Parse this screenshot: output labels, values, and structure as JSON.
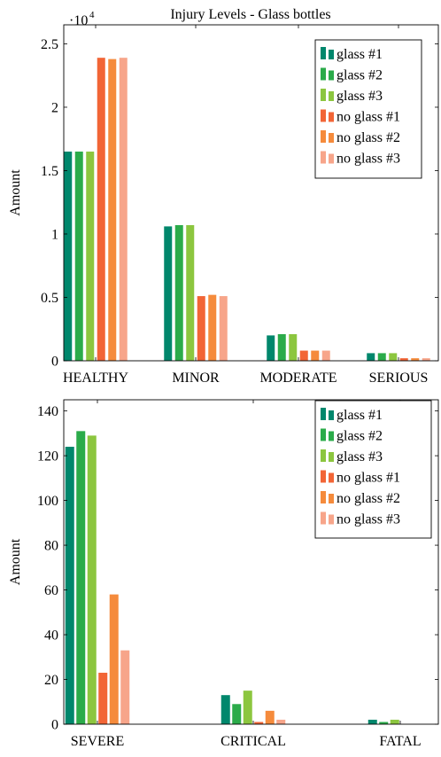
{
  "chart_data": [
    {
      "type": "bar",
      "title": "Injury Levels - Glass bottles",
      "ylabel": "Amount",
      "xlabel": "",
      "scale_label": "·10",
      "scale_exponent": "4",
      "categories": [
        "HEALTHY",
        "MINOR",
        "MODERATE",
        "SERIOUS"
      ],
      "ylim": [
        0,
        2.65
      ],
      "yticks": [
        0,
        0.5,
        1,
        1.5,
        2,
        2.5
      ],
      "ytick_labels": [
        "0",
        "0.5",
        "1",
        "1.5",
        "2",
        "2.5"
      ],
      "legend_position": "top-right",
      "grid": false,
      "series": [
        {
          "name": "glass #1",
          "color": "#00876c",
          "values": [
            1.65,
            1.06,
            0.2,
            0.06
          ]
        },
        {
          "name": "glass #2",
          "color": "#2bab4a",
          "values": [
            1.65,
            1.07,
            0.21,
            0.06
          ]
        },
        {
          "name": "glass #3",
          "color": "#8cc63f",
          "values": [
            1.65,
            1.07,
            0.21,
            0.06
          ]
        },
        {
          "name": "no glass #1",
          "color": "#f26536",
          "values": [
            2.39,
            0.51,
            0.08,
            0.02
          ]
        },
        {
          "name": "no glass #2",
          "color": "#f58b3c",
          "values": [
            2.38,
            0.52,
            0.08,
            0.02
          ]
        },
        {
          "name": "no glass #3",
          "color": "#f7a58a",
          "values": [
            2.39,
            0.51,
            0.08,
            0.02
          ]
        }
      ]
    },
    {
      "type": "bar",
      "title": "",
      "ylabel": "Amount",
      "xlabel": "",
      "categories": [
        "SEVERE",
        "CRITICAL",
        "FATAL"
      ],
      "ylim": [
        0,
        145
      ],
      "yticks": [
        0,
        20,
        40,
        60,
        80,
        100,
        120,
        140
      ],
      "ytick_labels": [
        "0",
        "20",
        "40",
        "60",
        "80",
        "100",
        "120",
        "140"
      ],
      "legend_position": "top-right",
      "grid": false,
      "series": [
        {
          "name": "glass #1",
          "color": "#00876c",
          "values": [
            124,
            13,
            2
          ]
        },
        {
          "name": "glass #2",
          "color": "#2bab4a",
          "values": [
            131,
            9,
            1
          ]
        },
        {
          "name": "glass #3",
          "color": "#8cc63f",
          "values": [
            129,
            15,
            2
          ]
        },
        {
          "name": "no glass #1",
          "color": "#f26536",
          "values": [
            23,
            1,
            0
          ]
        },
        {
          "name": "no glass #2",
          "color": "#f58b3c",
          "values": [
            58,
            6,
            0
          ]
        },
        {
          "name": "no glass #3",
          "color": "#f7a58a",
          "values": [
            33,
            2,
            0
          ]
        }
      ]
    }
  ]
}
